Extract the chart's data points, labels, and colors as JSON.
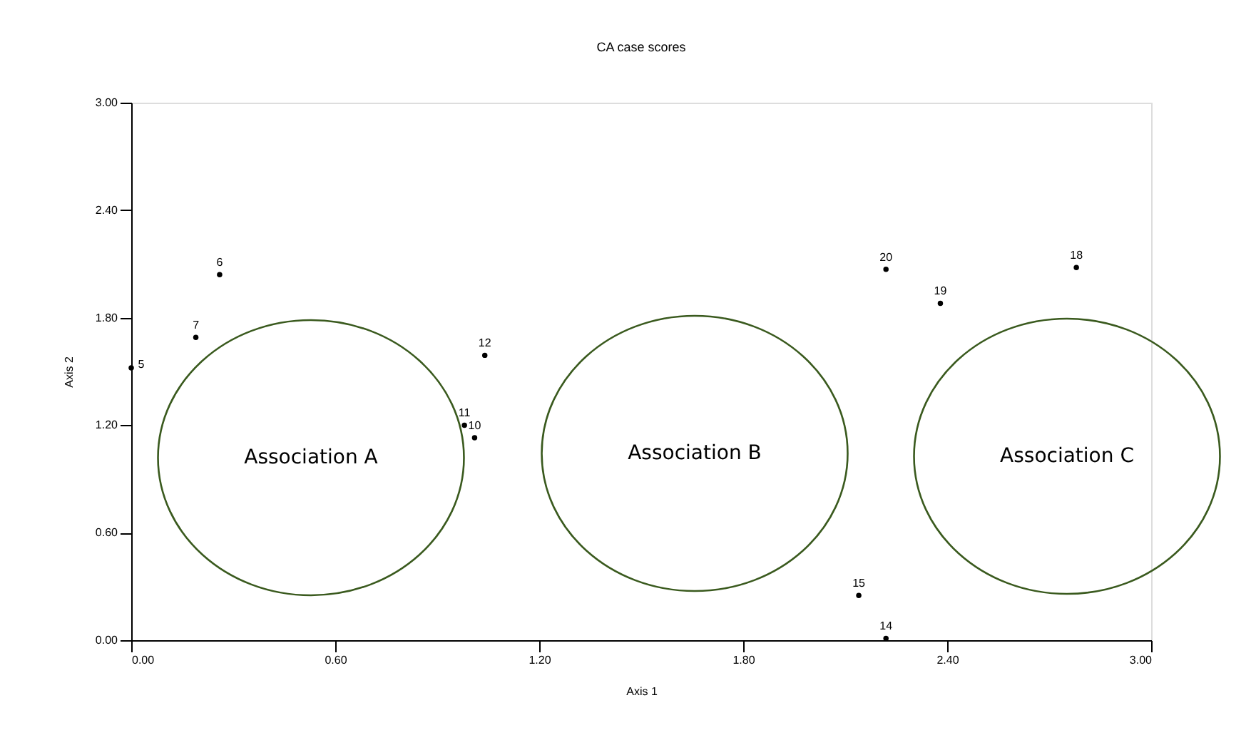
{
  "chart_data": {
    "type": "scatter",
    "title": "CA case scores",
    "xlabel": "Axis 1",
    "ylabel": "Axis 2",
    "x": [
      0.0,
      0.19,
      0.26,
      0.98,
      1.01,
      1.04,
      2.22,
      2.14,
      2.78,
      2.38,
      2.22
    ],
    "series": [
      {
        "color": "#000000",
        "values": [
          1.52,
          1.69,
          2.04,
          1.2,
          1.13,
          1.59,
          0.01,
          0.25,
          2.08,
          1.88,
          2.07
        ]
      }
    ],
    "marker": "circle",
    "grid": false,
    "xlim": [
      0,
      3
    ],
    "ylim": [
      0,
      3
    ],
    "xticks": [
      {
        "value": 0,
        "label": "0.00"
      },
      {
        "value": 0.6,
        "label": "0.60"
      },
      {
        "value": 1.2,
        "label": "1.20"
      },
      {
        "value": 1.8,
        "label": "1.80"
      },
      {
        "value": 2.4,
        "label": "2.40"
      },
      {
        "value": 3,
        "label": "3.00"
      }
    ],
    "yticks": [
      {
        "value": 0,
        "label": "0.00"
      },
      {
        "value": 0.6,
        "label": "0.60"
      },
      {
        "value": 1.2,
        "label": "1.20"
      },
      {
        "value": 1.8,
        "label": "1.80"
      },
      {
        "value": 2.4,
        "label": "2.40"
      },
      {
        "value": 3,
        "label": "3.00"
      }
    ],
    "annotations": [
      {
        "text": "5",
        "x": 0.0,
        "y": 1.52
      },
      {
        "text": "7",
        "x": 0.19,
        "y": 1.69
      },
      {
        "text": "6",
        "x": 0.26,
        "y": 2.04
      },
      {
        "text": "11",
        "x": 0.98,
        "y": 1.2
      },
      {
        "text": "10",
        "x": 1.01,
        "y": 1.13
      },
      {
        "text": "12",
        "x": 1.04,
        "y": 1.59
      },
      {
        "text": "14",
        "x": 2.22,
        "y": 0.01
      },
      {
        "text": "15",
        "x": 2.14,
        "y": 0.25
      },
      {
        "text": "18",
        "x": 2.78,
        "y": 2.08
      },
      {
        "text": "19",
        "x": 2.38,
        "y": 1.88
      },
      {
        "text": "20",
        "x": 2.22,
        "y": 2.07
      },
      "Association A",
      "Association B",
      "Association C"
    ]
  }
}
